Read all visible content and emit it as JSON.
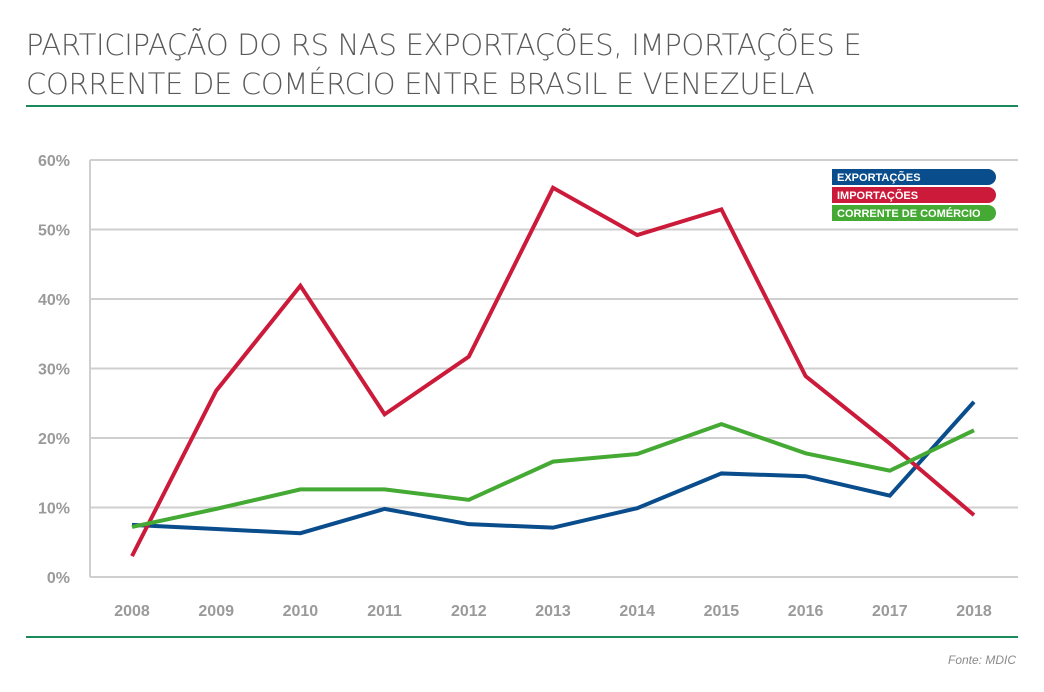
{
  "title_lines": [
    "PARTICIPAÇÃO DO RS NAS EXPORTAÇÕES, IMPORTAÇÕES E",
    "CORRENTE DE COMÉRCIO ENTRE BRASIL E VENEZUELA"
  ],
  "source": "Fonte: MDIC",
  "chart_data": {
    "type": "line",
    "title": "PARTICIPAÇÃO DO RS NAS EXPORTAÇÕES, IMPORTAÇÕES E CORRENTE DE COMÉRCIO ENTRE BRASIL E VENEZUELA",
    "xlabel": "",
    "ylabel": "",
    "categories": [
      "2008",
      "2009",
      "2010",
      "2011",
      "2012",
      "2013",
      "2014",
      "2015",
      "2016",
      "2017",
      "2018"
    ],
    "ylim": [
      0,
      60
    ],
    "yticks": [
      0,
      10,
      20,
      30,
      40,
      50,
      60
    ],
    "ytick_labels": [
      "0%",
      "10%",
      "20%",
      "30%",
      "40%",
      "50%",
      "60%"
    ],
    "grid": true,
    "legend_position": "top-right",
    "series": [
      {
        "name": "EXPORTAÇÕES",
        "color": "#0a4d8c",
        "values": [
          7.5,
          6.9,
          6.3,
          9.8,
          7.6,
          7.1,
          9.9,
          14.9,
          14.5,
          11.7,
          25.2
        ]
      },
      {
        "name": "IMPORTAÇÕES",
        "color": "#cc1a3a",
        "values": [
          3.0,
          26.8,
          41.9,
          23.4,
          31.7,
          56.0,
          49.2,
          52.9,
          28.9,
          19.2,
          8.9
        ]
      },
      {
        "name": "CORRENTE DE COMÉRCIO",
        "color": "#44aa33",
        "values": [
          7.2,
          9.8,
          12.6,
          12.6,
          11.1,
          16.6,
          17.7,
          22.0,
          17.8,
          15.3,
          21.1
        ]
      }
    ]
  }
}
